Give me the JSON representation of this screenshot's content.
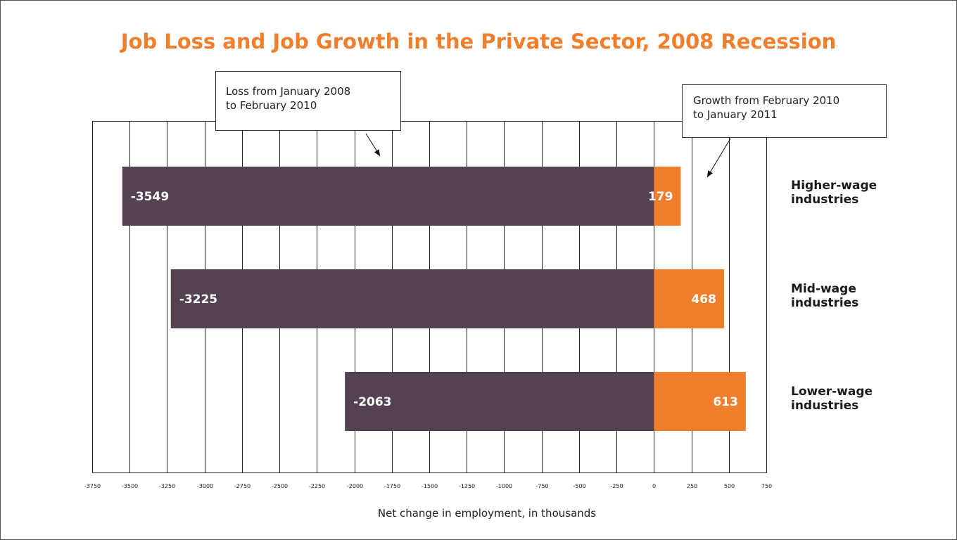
{
  "chart_data": {
    "type": "bar",
    "orientation": "horizontal",
    "stacked": true,
    "title": "Job Loss and Job Growth in the Private Sector, 2008 Recession",
    "xlabel": "Net change in employment, in thousands",
    "ylabel": "",
    "xlim": [
      -3750,
      750
    ],
    "xticks": [
      -3750,
      -3500,
      -3250,
      -3000,
      -2750,
      -2500,
      -2250,
      -2000,
      -1750,
      -1500,
      -1250,
      -1000,
      -750,
      -500,
      -250,
      0,
      250,
      500,
      750
    ],
    "grid": true,
    "categories": [
      "Higher-wage industries",
      "Mid-wage industries",
      "Lower-wage industries"
    ],
    "category_lines": [
      [
        "Higher-wage",
        "industries"
      ],
      [
        "Mid-wage",
        "industries"
      ],
      [
        "Lower-wage",
        "industries"
      ]
    ],
    "series": [
      {
        "name": "Loss from January 2008 to February 2010",
        "values": [
          -3549,
          -3225,
          -2063
        ],
        "color": "#544252"
      },
      {
        "name": "Growth from February 2010 to January 2011",
        "values": [
          179,
          468,
          613
        ],
        "color": "#f07f2d"
      }
    ],
    "annotations": [
      {
        "text": "Loss from January 2008\nto February 2010"
      },
      {
        "text": "Growth from February 2010\nto January 2011"
      }
    ]
  },
  "colors": {
    "title": "#f07f2d",
    "loss": "#544252",
    "growth": "#f07f2d",
    "grid": "#222222"
  }
}
